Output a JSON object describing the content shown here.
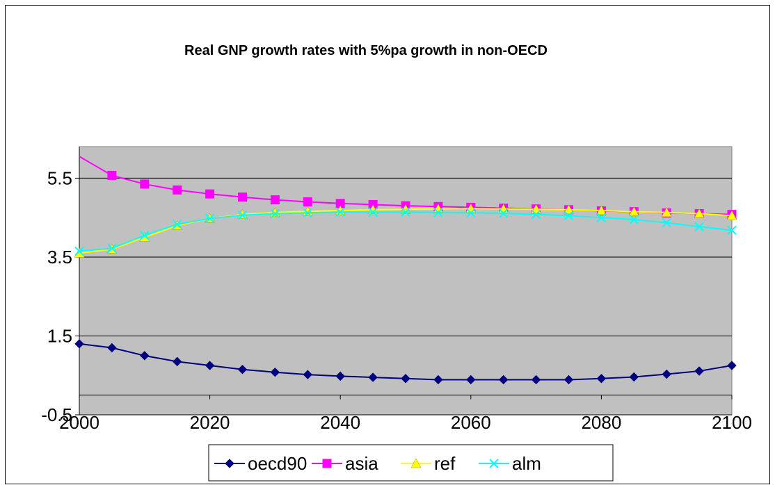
{
  "chart_data": {
    "type": "line",
    "title": "Real GNP growth rates with 5%pa growth in non-OECD",
    "xlabel": "",
    "ylabel": "",
    "x": [
      2000,
      2005,
      2010,
      2015,
      2020,
      2025,
      2030,
      2035,
      2040,
      2045,
      2050,
      2055,
      2060,
      2065,
      2070,
      2075,
      2080,
      2085,
      2090,
      2095,
      2100
    ],
    "xlim": [
      2000,
      2100
    ],
    "ylim": [
      -0.5,
      6.3
    ],
    "x_ticks": [
      "2000",
      "2020",
      "2040",
      "2060",
      "2080",
      "2100"
    ],
    "y_ticks": [
      "-0.5",
      "1.5",
      "3.5",
      "5.5"
    ],
    "grid": true,
    "legend_position": "bottom",
    "series": [
      {
        "name": "oecd90",
        "color": "#000080",
        "marker": "diamond",
        "values": [
          1.3,
          1.2,
          1.0,
          0.85,
          0.75,
          0.65,
          0.58,
          0.52,
          0.48,
          0.45,
          0.42,
          0.39,
          0.39,
          0.39,
          0.39,
          0.39,
          0.42,
          0.46,
          0.53,
          0.61,
          0.75
        ]
      },
      {
        "name": "asia",
        "color": "#ff00ff",
        "marker": "square",
        "values": [
          6.05,
          5.57,
          5.35,
          5.2,
          5.1,
          5.02,
          4.95,
          4.9,
          4.86,
          4.83,
          4.8,
          4.78,
          4.76,
          4.74,
          4.72,
          4.7,
          4.67,
          4.65,
          4.62,
          4.6,
          4.58
        ]
      },
      {
        "name": "ref",
        "color": "#ffff00",
        "marker": "triangle",
        "values": [
          3.6,
          3.7,
          4.0,
          4.3,
          4.48,
          4.58,
          4.63,
          4.66,
          4.68,
          4.7,
          4.71,
          4.72,
          4.73,
          4.72,
          4.71,
          4.7,
          4.68,
          4.65,
          4.63,
          4.6,
          4.55
        ]
      },
      {
        "name": "alm",
        "color": "#00ffff",
        "marker": "x",
        "values": [
          3.65,
          3.72,
          4.05,
          4.33,
          4.48,
          4.56,
          4.6,
          4.62,
          4.64,
          4.64,
          4.64,
          4.63,
          4.62,
          4.61,
          4.58,
          4.55,
          4.5,
          4.45,
          4.37,
          4.27,
          4.18
        ]
      }
    ]
  }
}
